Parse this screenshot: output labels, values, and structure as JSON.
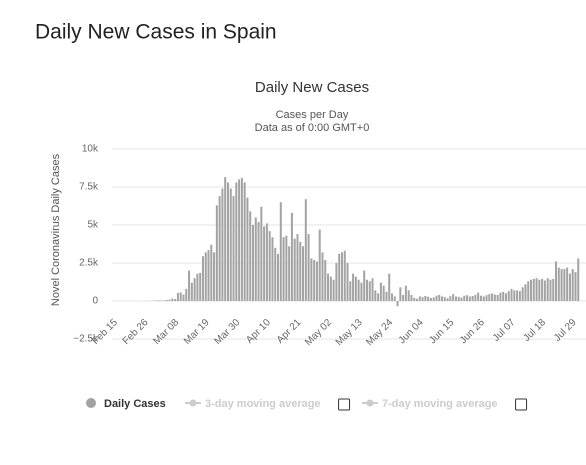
{
  "page_title": "Daily New Cases in Spain",
  "chart_data": {
    "type": "bar",
    "title": "Daily New Cases",
    "subtitle": [
      "Cases per Day",
      "Data as of 0:00 GMT+0"
    ],
    "y_axis_label": "Novel Coronavirus Daily Cases",
    "ylim": [
      -2500,
      10000
    ],
    "yticks": [
      {
        "value": 10000,
        "label": "10k"
      },
      {
        "value": 7500,
        "label": "7.5k"
      },
      {
        "value": 5000,
        "label": "5k"
      },
      {
        "value": 2500,
        "label": "2.5k"
      },
      0,
      {
        "value": -2500,
        "label": "−2.5k"
      }
    ],
    "grid": true,
    "categories": [
      "Feb 15",
      null,
      null,
      null,
      null,
      null,
      null,
      null,
      null,
      null,
      null,
      "Feb 26",
      null,
      null,
      null,
      null,
      null,
      null,
      null,
      null,
      null,
      null,
      "Mar 08",
      null,
      null,
      null,
      null,
      null,
      null,
      null,
      null,
      null,
      null,
      "Mar 19",
      null,
      null,
      null,
      null,
      null,
      null,
      null,
      null,
      null,
      null,
      "Mar 30",
      null,
      null,
      null,
      null,
      null,
      null,
      null,
      null,
      null,
      null,
      "Apr 10",
      null,
      null,
      null,
      null,
      null,
      null,
      null,
      null,
      null,
      null,
      "Apr 21",
      null,
      null,
      null,
      null,
      null,
      null,
      null,
      null,
      null,
      null,
      "May 02",
      null,
      null,
      null,
      null,
      null,
      null,
      null,
      null,
      null,
      null,
      "May 13",
      null,
      null,
      null,
      null,
      null,
      null,
      null,
      null,
      null,
      null,
      "May 24",
      null,
      null,
      null,
      null,
      null,
      null,
      null,
      null,
      null,
      null,
      "Jun 04",
      null,
      null,
      null,
      null,
      null,
      null,
      null,
      null,
      null,
      null,
      "Jun 15",
      null,
      null,
      null,
      null,
      null,
      null,
      null,
      null,
      null,
      null,
      "Jun 26",
      null,
      null,
      null,
      null,
      null,
      null,
      null,
      null,
      null,
      null,
      "Jul 07",
      null,
      null,
      null,
      null,
      null,
      null,
      null,
      null,
      null,
      null,
      "Jul 18",
      null,
      null,
      null,
      null,
      null,
      null,
      null,
      null,
      null,
      null,
      "Jul 29",
      null,
      null
    ],
    "series": [
      {
        "name": "Daily Cases",
        "color": "#a3a3a3",
        "values": [
          0,
          0,
          0,
          0,
          0,
          0,
          0,
          0,
          0,
          0,
          2,
          3,
          6,
          10,
          13,
          32,
          45,
          36,
          40,
          69,
          90,
          165,
          130,
          530,
          570,
          420,
          800,
          2000,
          1200,
          1500,
          1800,
          1850,
          2950,
          3200,
          3350,
          3700,
          3200,
          6300,
          6900,
          7400,
          8150,
          7800,
          7400,
          6900,
          7800,
          8000,
          8100,
          7800,
          6800,
          5900,
          5000,
          5500,
          5200,
          6200,
          4900,
          5100,
          4600,
          4200,
          3500,
          3100,
          6500,
          4200,
          4300,
          3600,
          5800,
          4100,
          4400,
          3900,
          3600,
          6700,
          4400,
          2800,
          2700,
          2600,
          4700,
          3200,
          2700,
          1800,
          1600,
          1400,
          2500,
          3100,
          3200,
          3300,
          2500,
          1300,
          1800,
          1600,
          1400,
          1200,
          2000,
          1400,
          1300,
          1500,
          700,
          500,
          1200,
          1000,
          600,
          1800,
          500,
          300,
          -350,
          900,
          400,
          1000,
          700,
          400,
          200,
          150,
          300,
          250,
          330,
          280,
          200,
          240,
          350,
          400,
          300,
          250,
          180,
          320,
          450,
          300,
          280,
          220,
          350,
          380,
          300,
          330,
          400,
          550,
          350,
          300,
          380,
          450,
          500,
          420,
          400,
          550,
          600,
          500,
          650,
          800,
          700,
          700,
          650,
          900,
          1100,
          1300,
          1400,
          1450,
          1500,
          1400,
          1450,
          1350,
          1500,
          1400,
          1450,
          2600,
          2200,
          2100,
          2100,
          2200,
          1800,
          2100,
          1900,
          2800
        ]
      }
    ],
    "hidden_series": [
      {
        "name": "3-day moving average",
        "color": "#cccccc"
      },
      {
        "name": "7-day moving average",
        "color": "#cccccc"
      }
    ]
  }
}
